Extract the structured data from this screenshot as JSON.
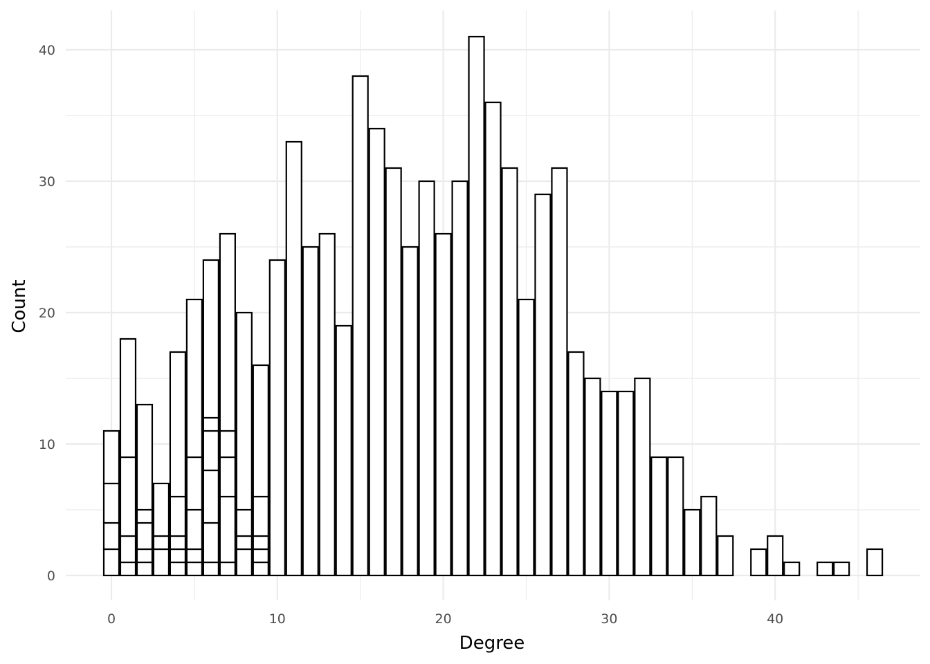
{
  "chart_data": {
    "type": "bar",
    "title": "",
    "xlabel": "Degree",
    "ylabel": "Count",
    "xlim": [
      -0.5,
      46.5
    ],
    "ylim": [
      0,
      42
    ],
    "x_ticks": [
      0,
      10,
      20,
      30,
      40
    ],
    "y_ticks": [
      0,
      10,
      20,
      30,
      40
    ],
    "grid": true,
    "bar_fill": "#ffffff",
    "bar_stroke": "#000000",
    "grid_color": "#ebebeb",
    "totals": {
      "0": 11,
      "1": 18,
      "2": 13,
      "3": 7,
      "4": 17,
      "5": 21,
      "6": 24,
      "7": 26,
      "8": 20,
      "9": 16,
      "10": 24,
      "11": 33,
      "12": 25,
      "13": 26,
      "14": 19,
      "15": 38,
      "16": 34,
      "17": 31,
      "18": 25,
      "19": 30,
      "20": 26,
      "21": 30,
      "22": 41,
      "23": 36,
      "24": 31,
      "25": 21,
      "26": 29,
      "27": 31,
      "28": 17,
      "29": 15,
      "30": 14,
      "31": 14,
      "32": 15,
      "33": 9,
      "34": 9,
      "35": 5,
      "36": 6,
      "37": 3,
      "39": 2,
      "40": 3,
      "41": 1,
      "43": 1,
      "44": 1,
      "46": 2
    },
    "stack_boundaries": {
      "0": [
        2,
        4,
        7
      ],
      "1": [
        1,
        3,
        9
      ],
      "2": [
        1,
        2,
        4,
        5
      ],
      "3": [
        2,
        3
      ],
      "4": [
        1,
        2,
        3,
        6
      ],
      "5": [
        1,
        2,
        5,
        9
      ],
      "6": [
        1,
        4,
        8,
        11,
        12
      ],
      "7": [
        1,
        6,
        9,
        11
      ],
      "8": [
        2,
        3,
        5
      ],
      "9": [
        1,
        2,
        3,
        6
      ]
    }
  }
}
